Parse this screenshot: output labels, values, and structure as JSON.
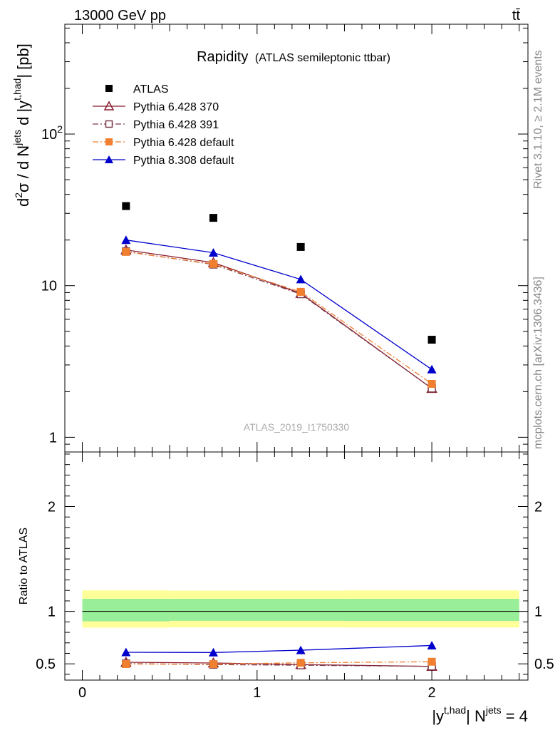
{
  "header": {
    "energy_label": "13000 GeV pp",
    "process_label": "tt̄"
  },
  "side_text": {
    "rivet": "Rivet 3.1.10, ≥ 2.1M events",
    "mcplots": "mcplots.cern.ch [arXiv:1306.3436]"
  },
  "chart_data": [
    {
      "panel": "main",
      "type": "line",
      "title": "Rapidity",
      "subtitle": "(ATLAS semileptonic ttbar)",
      "watermark": "ATLAS_2019_I1750330",
      "ylabel": {
        "base": "d",
        "sup1": "2",
        "sigma": "σ / d N",
        "sup2": "jets",
        "tail": " d |y",
        "sup3": "t,had",
        "unit": "| [pb]"
      },
      "x": [
        0.25,
        0.75,
        1.25,
        2.0
      ],
      "xlim": [
        -0.1,
        2.55
      ],
      "ylim": [
        0.8,
        530
      ],
      "log_y": true,
      "yticks": [
        {
          "v": 1,
          "label": "1"
        },
        {
          "v": 10,
          "label": "10"
        },
        {
          "v": 100,
          "label": "10",
          "sup": "2"
        }
      ],
      "legend_position": "top-left",
      "series": [
        {
          "name": "ATLAS",
          "color": "#000000",
          "marker": "square",
          "line": "none",
          "values": [
            33.5,
            28.0,
            18.0,
            4.4
          ]
        },
        {
          "name": "Pythia 6.428 370",
          "color": "#8b1a2b",
          "marker": "open-triangle",
          "line": "solid",
          "values": [
            17.2,
            14.2,
            8.9,
            2.1
          ]
        },
        {
          "name": "Pythia 6.428 391",
          "color": "#7a3a4a",
          "marker": "open-square",
          "line": "dashdot",
          "values": [
            16.8,
            13.8,
            8.8,
            2.1
          ]
        },
        {
          "name": "Pythia 6.428 default",
          "color": "#f08030",
          "marker": "filled-square",
          "line": "dashdot",
          "values": [
            16.7,
            13.9,
            9.1,
            2.25
          ]
        },
        {
          "name": "Pythia 8.308 default",
          "color": "#0000cc",
          "marker": "filled-triangle",
          "line": "solid",
          "values": [
            20.0,
            16.5,
            11.0,
            2.8
          ]
        }
      ]
    },
    {
      "panel": "ratio",
      "type": "line",
      "ylabel": "Ratio to ATLAS",
      "xlabel": {
        "base": "|y",
        "sup1": "t,had",
        "mid": "| N",
        "sup2": "jets",
        "tail": " = 4"
      },
      "x": [
        0.25,
        0.75,
        1.25,
        2.0
      ],
      "xlim": [
        -0.1,
        2.55
      ],
      "ylim": [
        0.345,
        2.52
      ],
      "xticks": [
        0,
        1,
        2
      ],
      "yticks": [
        {
          "v": 0.5,
          "label": "0.5"
        },
        {
          "v": 1,
          "label": "1"
        },
        {
          "v": 2,
          "label": "2"
        }
      ],
      "bands": [
        {
          "name": "total",
          "color": "#ffff99",
          "x": [
            0,
            0.5,
            1.5,
            2.5
          ],
          "lo": [
            0.845,
            0.848,
            0.846,
            0.845
          ],
          "hi": [
            1.2,
            1.198,
            1.2,
            1.2
          ]
        },
        {
          "name": "stat",
          "color": "#99ee99",
          "x": [
            0,
            0.5,
            1.5,
            2.5
          ],
          "lo": [
            0.905,
            0.91,
            0.908,
            0.905
          ],
          "hi": [
            1.12,
            1.12,
            1.12,
            1.12
          ]
        }
      ],
      "series": [
        {
          "name": "Pythia 6.428 370",
          "color": "#8b1a2b",
          "marker": "open-triangle",
          "line": "solid",
          "values": [
            0.515,
            0.508,
            0.493,
            0.476
          ]
        },
        {
          "name": "Pythia 6.428 391",
          "color": "#7a3a4a",
          "marker": "open-square",
          "line": "dashdot",
          "values": [
            0.502,
            0.493,
            0.487,
            0.476
          ]
        },
        {
          "name": "Pythia 6.428 default",
          "color": "#f08030",
          "marker": "filled-square",
          "line": "dashdot",
          "values": [
            0.498,
            0.497,
            0.51,
            0.52
          ]
        },
        {
          "name": "Pythia 8.308 default",
          "color": "#0000cc",
          "marker": "filled-triangle",
          "line": "solid",
          "values": [
            0.61,
            0.608,
            0.63,
            0.675
          ]
        }
      ]
    }
  ]
}
